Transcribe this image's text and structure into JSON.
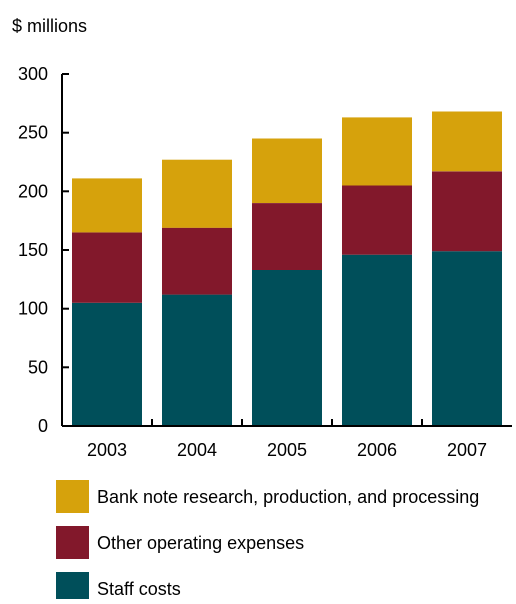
{
  "chart_data": {
    "type": "bar",
    "stacked": true,
    "unit_label": "$ millions",
    "title": "",
    "xlabel": "",
    "ylabel": "",
    "categories": [
      "2003",
      "2004",
      "2005",
      "2006",
      "2007"
    ],
    "ylim": [
      0,
      300
    ],
    "yticks": [
      0,
      50,
      100,
      150,
      200,
      250,
      300
    ],
    "grid": false,
    "legend_position": "bottom",
    "series": [
      {
        "name": "Staff costs",
        "color": "#004f5a",
        "values": [
          105,
          112,
          133,
          146,
          149
        ]
      },
      {
        "name": "Other operating expenses",
        "color": "#82182b",
        "values": [
          60,
          57,
          57,
          59,
          68
        ]
      },
      {
        "name": "Bank note research, production, and processing",
        "color": "#d6a20c",
        "values": [
          46,
          58,
          55,
          58,
          51
        ]
      }
    ]
  }
}
